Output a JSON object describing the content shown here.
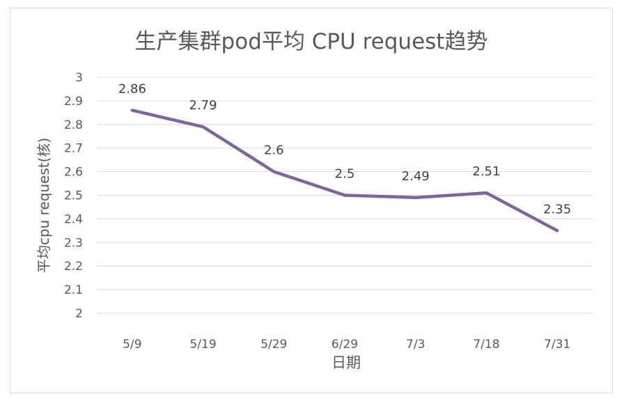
{
  "chart_data": {
    "type": "line",
    "title": "生产集群pod平均 CPU request趋势",
    "xlabel": "日期",
    "ylabel": "平均cpu request(核)",
    "categories": [
      "5/9",
      "5/19",
      "5/29",
      "6/29",
      "7/3",
      "7/18",
      "7/31"
    ],
    "series": [
      {
        "values": [
          2.86,
          2.79,
          2.6,
          2.5,
          2.49,
          2.51,
          2.35
        ],
        "value_labels": [
          "2.86",
          "2.79",
          "2.6",
          "2.5",
          "2.49",
          "2.51",
          "2.35"
        ],
        "color": "#8064a2"
      }
    ],
    "ylim": [
      2,
      3
    ],
    "yticks": [
      "2",
      "2.1",
      "2.2",
      "2.3",
      "2.4",
      "2.5",
      "2.6",
      "2.7",
      "2.8",
      "2.9",
      "3"
    ],
    "grid": true,
    "legend": "none",
    "colors": {
      "gridline": "#d9d9d9",
      "title": "#595959",
      "tick_label": "#595959",
      "data_label": "#404040",
      "frame_border": "#d9d9d9"
    }
  }
}
